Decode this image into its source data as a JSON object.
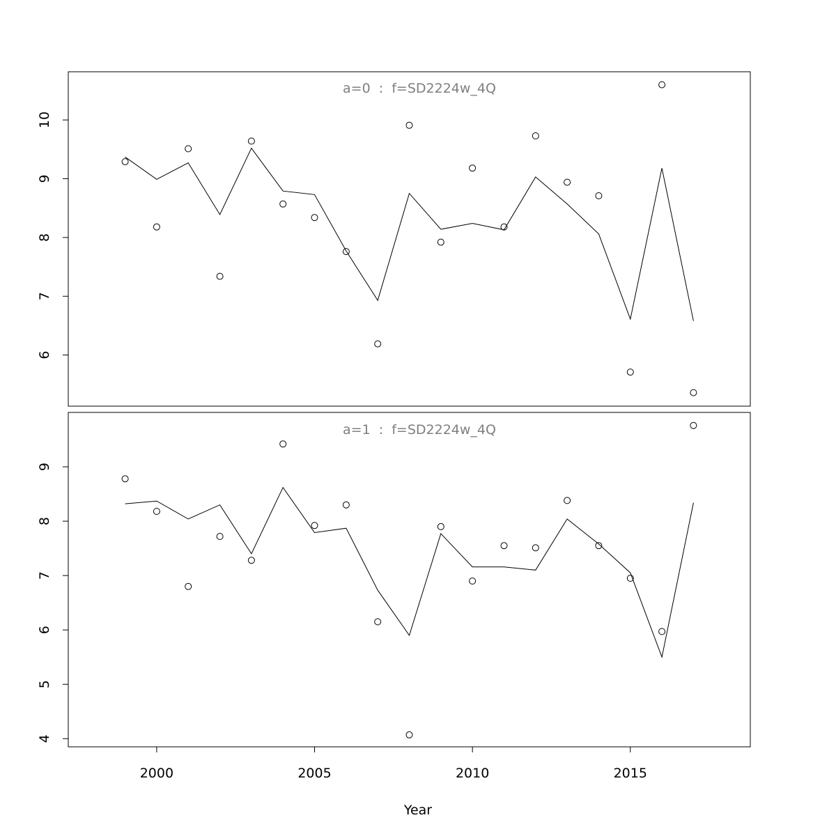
{
  "chart_data": [
    {
      "type": "line",
      "title": "a=0  :  f=SD2224w_4Q",
      "xlabel": "Year",
      "ylabel": "",
      "xlim": [
        1997.2,
        2018.8
      ],
      "ylim": [
        5.13,
        10.82
      ],
      "x_ticks": [
        2000,
        2005,
        2010,
        2015
      ],
      "y_ticks": [
        6,
        7,
        8,
        9,
        10
      ],
      "x_tick_labels": [
        "2000",
        "2005",
        "2010",
        "2015"
      ],
      "y_tick_labels": [
        "6",
        "7",
        "8",
        "9",
        "10"
      ],
      "grid": false,
      "series": [
        {
          "style": "points",
          "x": [
            1999,
            2000,
            2001,
            2002,
            2003,
            2004,
            2005,
            2006,
            2007,
            2008,
            2009,
            2010,
            2011,
            2012,
            2013,
            2014,
            2015,
            2016,
            2017
          ],
          "values": [
            9.29,
            8.18,
            9.51,
            7.34,
            9.64,
            8.57,
            8.34,
            7.76,
            6.19,
            9.91,
            7.92,
            9.18,
            8.18,
            9.73,
            8.94,
            8.71,
            5.71,
            10.6,
            5.36
          ]
        },
        {
          "style": "line",
          "x": [
            1999,
            2000,
            2001,
            2002,
            2003,
            2004,
            2005,
            2006,
            2007,
            2008,
            2009,
            2010,
            2011,
            2012,
            2013,
            2014,
            2015,
            2016,
            2017
          ],
          "values": [
            9.37,
            8.99,
            9.27,
            8.39,
            9.52,
            8.79,
            8.73,
            7.77,
            6.93,
            8.75,
            8.14,
            8.24,
            8.13,
            9.03,
            8.57,
            8.06,
            6.61,
            9.18,
            6.58
          ]
        }
      ]
    },
    {
      "type": "line",
      "title": "a=1  :  f=SD2224w_4Q",
      "xlabel": "Year",
      "ylabel": "",
      "xlim": [
        1997.2,
        2018.8
      ],
      "ylim": [
        3.85,
        10.0
      ],
      "x_ticks": [
        2000,
        2005,
        2010,
        2015
      ],
      "y_ticks": [
        4,
        5,
        6,
        7,
        8,
        9
      ],
      "x_tick_labels": [
        "2000",
        "2005",
        "2010",
        "2015"
      ],
      "y_tick_labels": [
        "4",
        "5",
        "6",
        "7",
        "8",
        "9"
      ],
      "grid": false,
      "series": [
        {
          "style": "points",
          "x": [
            1999,
            2000,
            2001,
            2002,
            2003,
            2004,
            2005,
            2006,
            2007,
            2008,
            2009,
            2010,
            2011,
            2012,
            2013,
            2014,
            2015,
            2016,
            2017
          ],
          "values": [
            8.78,
            8.18,
            6.8,
            7.72,
            7.28,
            9.42,
            7.92,
            8.3,
            6.15,
            4.07,
            7.9,
            6.9,
            7.55,
            7.51,
            8.38,
            7.55,
            6.95,
            5.97,
            9.76
          ]
        },
        {
          "style": "line",
          "x": [
            1999,
            2000,
            2001,
            2002,
            2003,
            2004,
            2005,
            2006,
            2007,
            2008,
            2009,
            2010,
            2011,
            2012,
            2013,
            2014,
            2015,
            2016,
            2017
          ],
          "values": [
            8.32,
            8.37,
            8.04,
            8.3,
            7.4,
            8.62,
            7.79,
            7.87,
            6.73,
            5.9,
            7.77,
            7.16,
            7.16,
            7.1,
            8.04,
            7.58,
            7.05,
            5.5,
            8.34
          ]
        }
      ]
    }
  ]
}
